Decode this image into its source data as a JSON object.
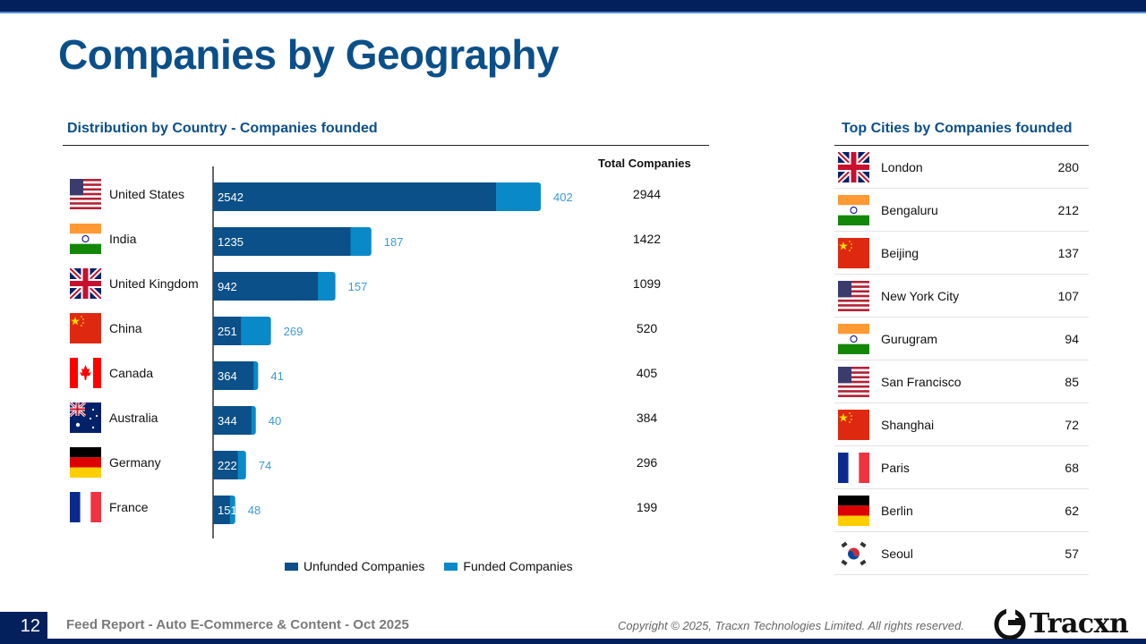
{
  "page": {
    "title": "Companies by Geography",
    "page_number": "12",
    "footer_text": "Feed Report - Auto E-Commerce & Content - Oct 2025",
    "copyright": "Copyright © 2025, Tracxn Technologies Limited. All rights reserved.",
    "logo_text": "Tracxn"
  },
  "colors": {
    "unfunded": "#0b5089",
    "funded": "#0a89c8",
    "funded_label": "#3a9bd8",
    "title": "#0b4f8a",
    "nav": "#04205c"
  },
  "chart_data": {
    "type": "bar",
    "orientation": "horizontal",
    "stacked": true,
    "title": "Distribution by Country - Companies founded",
    "xlabel": "",
    "ylabel": "",
    "categories": [
      "United States",
      "India",
      "United Kingdom",
      "China",
      "Canada",
      "Australia",
      "Germany",
      "France"
    ],
    "flags": [
      "us",
      "in",
      "gb",
      "cn",
      "ca",
      "au",
      "de",
      "fr"
    ],
    "series": [
      {
        "name": "Unfunded Companies",
        "values": [
          2542,
          1235,
          942,
          251,
          364,
          344,
          222,
          151
        ]
      },
      {
        "name": "Funded Companies",
        "values": [
          402,
          187,
          157,
          269,
          41,
          40,
          74,
          48
        ]
      }
    ],
    "totals_header": "Total Companies",
    "totals": [
      2944,
      1422,
      1099,
      520,
      405,
      384,
      296,
      199
    ],
    "xlim": [
      0,
      2944
    ],
    "grid": false,
    "legend": "bottom"
  },
  "cities": {
    "title": "Top Cities by Companies founded",
    "items": [
      {
        "name": "London",
        "flag": "gb",
        "value": "280"
      },
      {
        "name": "Bengaluru",
        "flag": "in",
        "value": "212"
      },
      {
        "name": "Beijing",
        "flag": "cn",
        "value": "137"
      },
      {
        "name": "New York City",
        "flag": "us",
        "value": "107"
      },
      {
        "name": "Gurugram",
        "flag": "in",
        "value": "94"
      },
      {
        "name": "San Francisco",
        "flag": "us",
        "value": "85"
      },
      {
        "name": "Shanghai",
        "flag": "cn",
        "value": "72"
      },
      {
        "name": "Paris",
        "flag": "fr",
        "value": "68"
      },
      {
        "name": "Berlin",
        "flag": "de",
        "value": "62"
      },
      {
        "name": "Seoul",
        "flag": "kr",
        "value": "57"
      }
    ]
  }
}
